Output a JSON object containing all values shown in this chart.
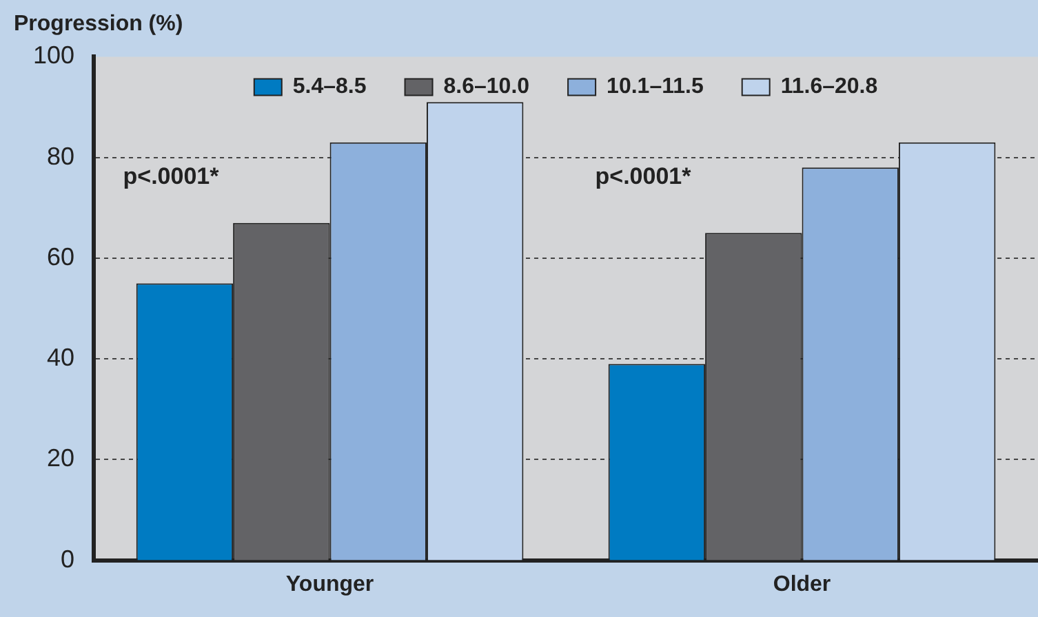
{
  "chart_data": {
    "type": "bar",
    "title": "Progression (%)",
    "categories": [
      "Younger",
      "Older"
    ],
    "series": [
      {
        "name": "5.4–8.5",
        "color": "#007bc2",
        "values": [
          55,
          39
        ]
      },
      {
        "name": "8.6–10.0",
        "color": "#636366",
        "values": [
          67,
          65
        ]
      },
      {
        "name": "10.1–11.5",
        "color": "#8db0dc",
        "values": [
          83,
          78
        ]
      },
      {
        "name": "11.6–20.8",
        "color": "#bfd3ec",
        "values": [
          91,
          83
        ]
      }
    ],
    "ylim": [
      0,
      100
    ],
    "yticks": [
      0,
      20,
      40,
      60,
      80,
      100
    ],
    "grid": "y",
    "legend": "top",
    "annotations": [
      "p<.0001*",
      "p<.0001*"
    ]
  }
}
